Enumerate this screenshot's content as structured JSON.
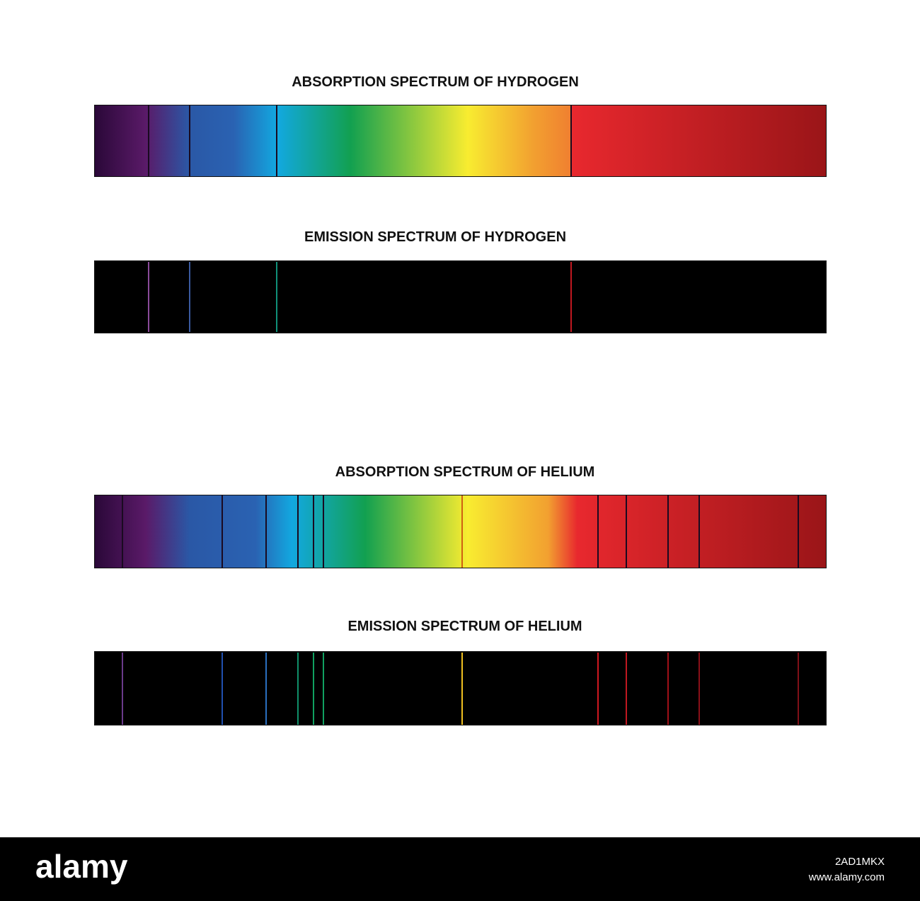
{
  "panels": [
    {
      "title": "ABSORPTION SPECTRUM  OF HYDROGEN"
    },
    {
      "title": "EMISSION SPECTRUM OF HYDROGEN"
    },
    {
      "title": "ABSORPTION SPECTRUM OF HELIUM"
    },
    {
      "title": "EMISSION SPECTRUM OF HELIUM"
    }
  ],
  "footer": {
    "logo": "alamy",
    "image_id": "2AD1MKX",
    "url": "www.alamy.com"
  }
}
